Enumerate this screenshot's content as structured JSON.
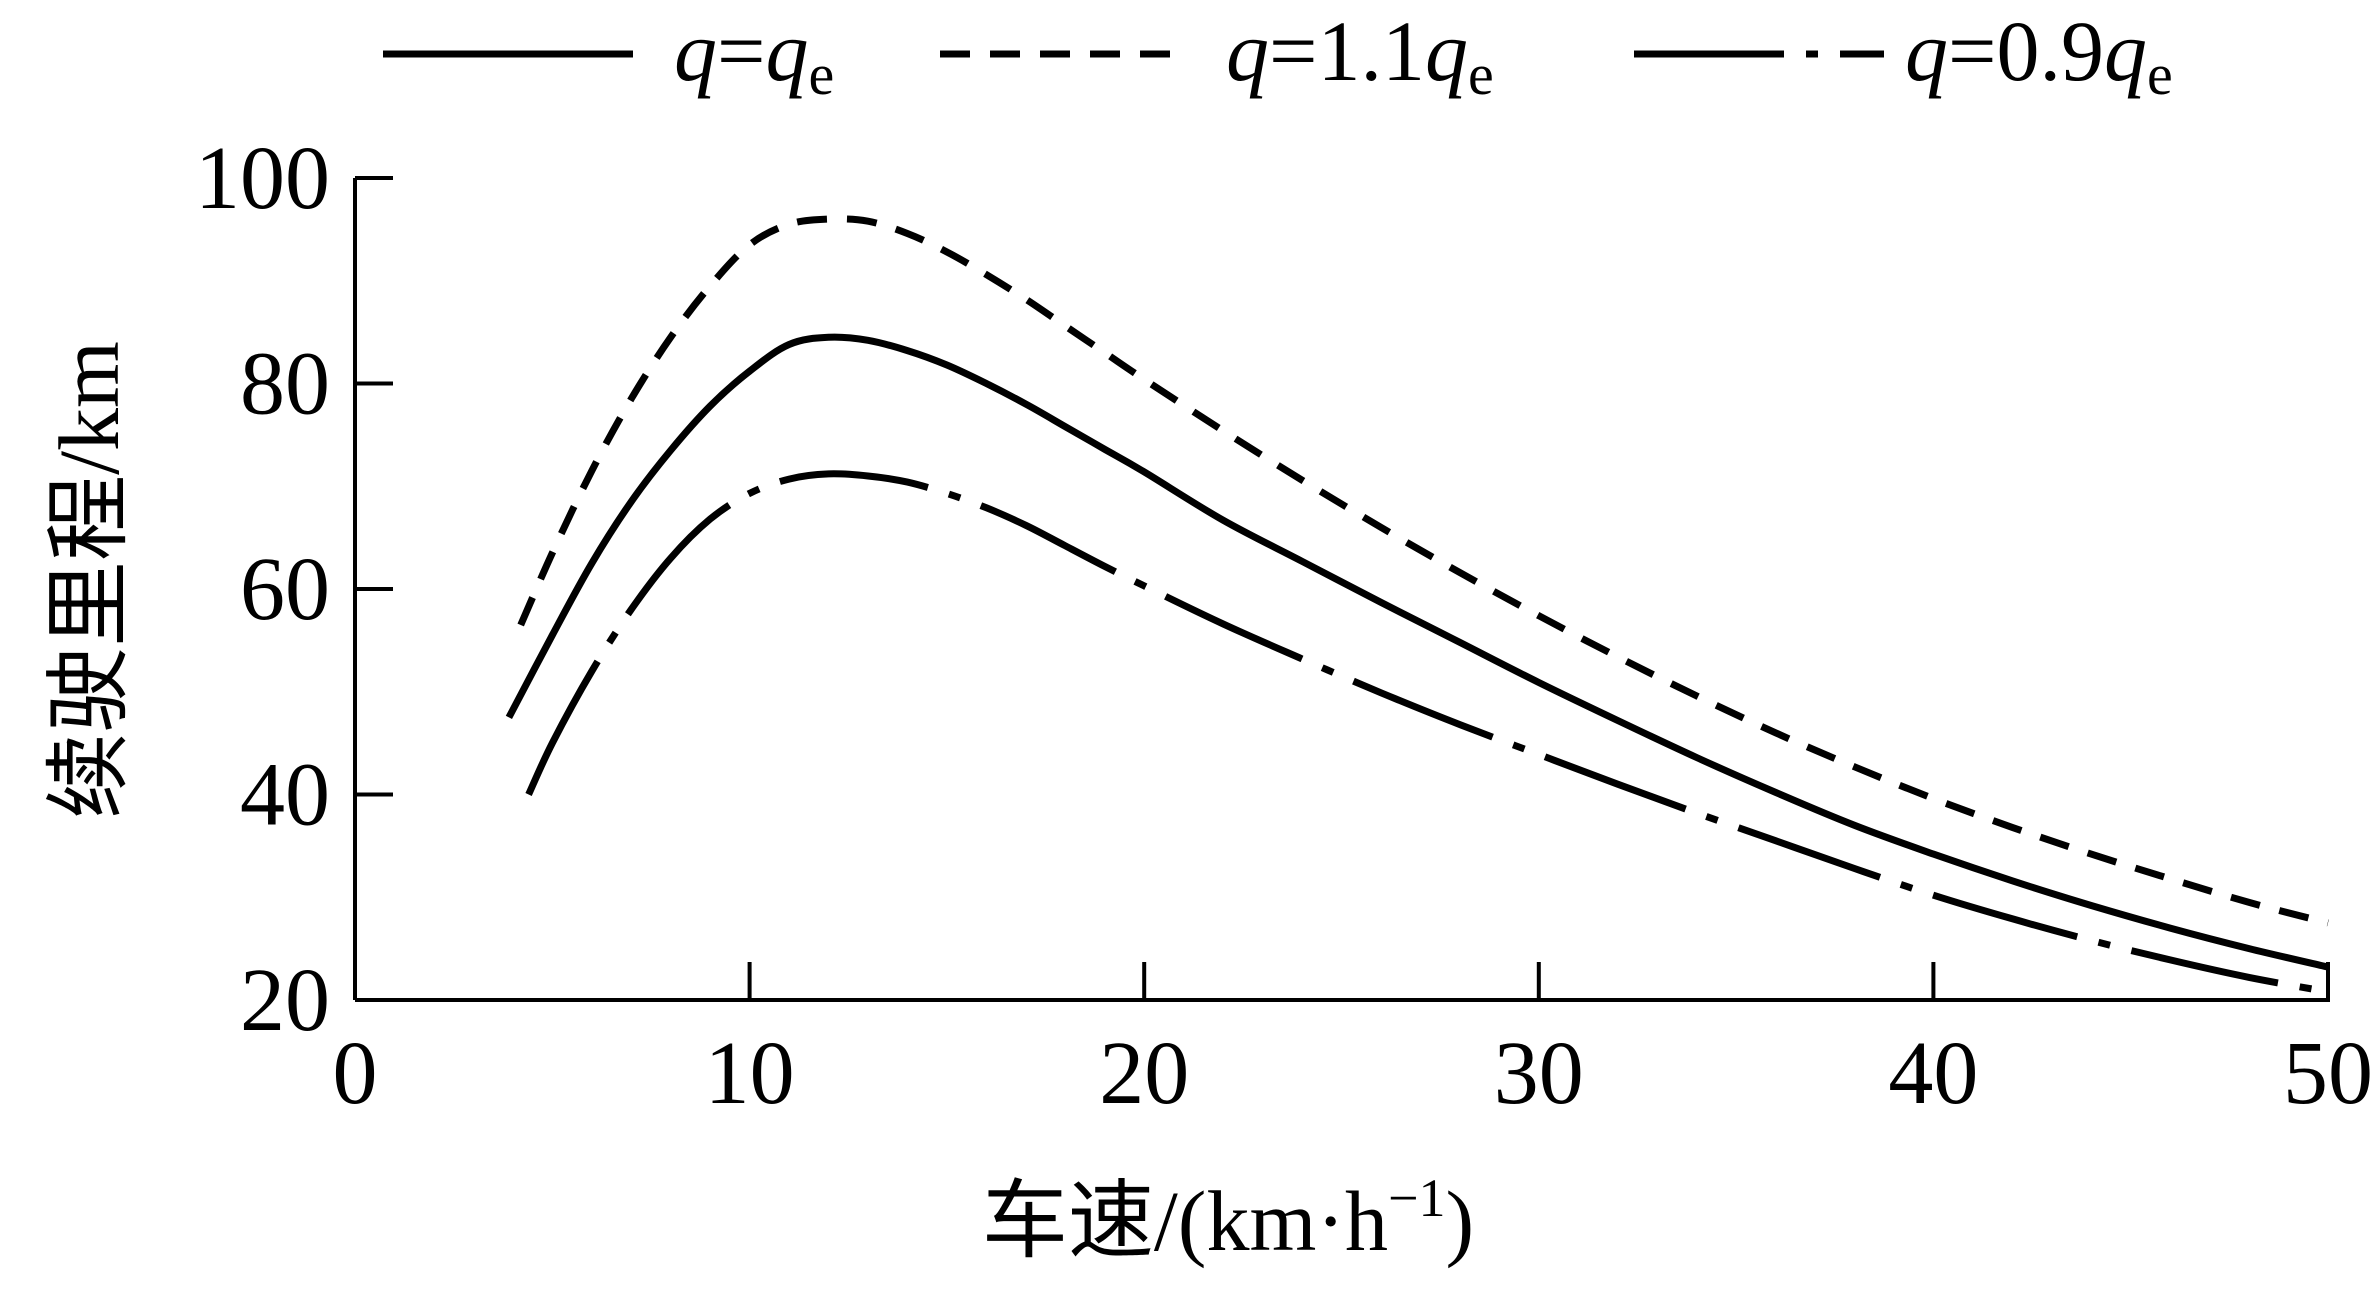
{
  "chart_data": {
    "type": "line",
    "title": "",
    "xlabel": "车速/(km·h",
    "xlabel_sup": "−1",
    "xlabel_close": ")",
    "ylabel": "续驶里程/km",
    "xlim": [
      0,
      50
    ],
    "ylim": [
      20,
      100
    ],
    "x_ticks": [
      0,
      10,
      20,
      30,
      40,
      50
    ],
    "y_ticks": [
      20,
      40,
      60,
      80,
      100
    ],
    "grid": false,
    "legend_position": "top",
    "series": [
      {
        "name": "q=qe",
        "legend_parts": [
          "q",
          "=",
          "q",
          "e"
        ],
        "style": "solid",
        "color": "#000000",
        "x": [
          3.9,
          5,
          6,
          7,
          8,
          9,
          10,
          11,
          12,
          13,
          14,
          15,
          16,
          17,
          18,
          19,
          20,
          22,
          24,
          26,
          28,
          30,
          32,
          34,
          36,
          38,
          40,
          42,
          44,
          46,
          48,
          50
        ],
        "y": [
          47.5,
          55.5,
          62.5,
          68.5,
          73.5,
          77.8,
          81.2,
          83.8,
          84.5,
          84.2,
          83.2,
          81.8,
          80.0,
          78.0,
          75.8,
          73.6,
          71.4,
          66.7,
          62.7,
          58.7,
          54.8,
          50.9,
          47.2,
          43.6,
          40.2,
          37.0,
          34.2,
          31.6,
          29.2,
          27.0,
          25.0,
          23.2
        ]
      },
      {
        "name": "q=1.1qe",
        "legend_parts": [
          "q",
          "=1.1",
          "q",
          "e"
        ],
        "style": "dashed",
        "color": "#000000",
        "x": [
          4.2,
          5,
          6,
          7,
          8,
          9,
          10,
          11,
          12,
          13,
          14,
          15,
          16,
          17,
          18,
          19,
          20,
          22,
          24,
          26,
          28,
          30,
          32,
          34,
          36,
          38,
          40,
          42,
          44,
          46,
          48,
          50
        ],
        "y": [
          56.5,
          63.5,
          71.5,
          78.5,
          84.5,
          89.5,
          93.5,
          95.5,
          96.0,
          95.8,
          94.6,
          92.8,
          90.6,
          88.2,
          85.6,
          83.0,
          80.4,
          75.4,
          70.6,
          66.0,
          61.6,
          57.4,
          53.4,
          49.6,
          46.0,
          42.7,
          39.6,
          36.8,
          34.2,
          31.8,
          29.5,
          27.5
        ]
      },
      {
        "name": "q=0.9qe",
        "legend_parts": [
          "q",
          "=0.9",
          "q",
          "e"
        ],
        "style": "dash-dot",
        "color": "#000000",
        "x": [
          4.4,
          5,
          6,
          7,
          8,
          9,
          10,
          11,
          12,
          13,
          14,
          15,
          16,
          17,
          18,
          19,
          20,
          22,
          24,
          26,
          28,
          30,
          32,
          34,
          36,
          38,
          40,
          42,
          44,
          46,
          48,
          50
        ],
        "y": [
          40.0,
          45.0,
          52.0,
          58.0,
          63.0,
          66.8,
          69.3,
          70.7,
          71.2,
          71.0,
          70.4,
          69.3,
          67.9,
          66.2,
          64.2,
          62.2,
          60.3,
          56.6,
          53.2,
          49.9,
          46.8,
          43.9,
          41.0,
          38.2,
          35.5,
          32.8,
          30.2,
          27.9,
          25.8,
          23.9,
          22.2,
          20.8
        ]
      }
    ]
  }
}
